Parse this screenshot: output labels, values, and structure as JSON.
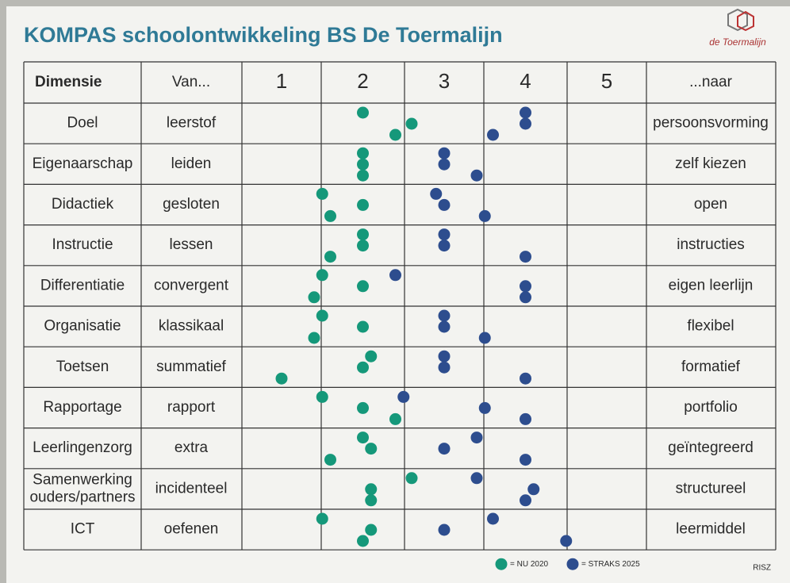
{
  "title": "KOMPAS schoolontwikkeling BS De Toermalijn",
  "logo": "de Toermalijn",
  "footer_mark": "RISZ",
  "header": {
    "dimension": "Dimensie",
    "from": "Van...",
    "to": "...naar"
  },
  "scale": [
    1,
    2,
    3,
    4,
    5
  ],
  "legend": [
    {
      "label": "= NU 2020",
      "color": "#15987a"
    },
    {
      "label": "= STRAKS 2025",
      "color": "#2d4d8e"
    }
  ],
  "rows": [
    {
      "dimension": [
        "Doel"
      ],
      "from": "leerstof",
      "to": "persoonsvorming",
      "now": [
        2.0,
        2.6,
        2.4
      ],
      "later": [
        4.0,
        4.0,
        3.6
      ]
    },
    {
      "dimension": [
        "Eigenaarschap"
      ],
      "from": "leiden",
      "to": "zelf kiezen",
      "now": [
        2.0,
        2.0,
        2.0
      ],
      "later": [
        3.0,
        3.0,
        3.4
      ]
    },
    {
      "dimension": [
        "Didactiek"
      ],
      "from": "gesloten",
      "to": "open",
      "now": [
        1.5,
        2.0,
        1.6
      ],
      "later": [
        2.9,
        3.0,
        3.5
      ]
    },
    {
      "dimension": [
        "Instructie"
      ],
      "from": "lessen",
      "to": "instructies",
      "now": [
        2.0,
        2.0,
        1.6
      ],
      "later": [
        3.0,
        3.0,
        4.0
      ]
    },
    {
      "dimension": [
        "Differentiatie"
      ],
      "from": "convergent",
      "to": "eigen leerlijn",
      "now": [
        1.5,
        2.0,
        1.4
      ],
      "later": [
        2.4,
        4.0,
        4.0
      ]
    },
    {
      "dimension": [
        "Organisatie"
      ],
      "from": "klassikaal",
      "to": "flexibel",
      "now": [
        1.5,
        2.0,
        1.4
      ],
      "later": [
        3.0,
        3.0,
        3.5
      ]
    },
    {
      "dimension": [
        "Toetsen"
      ],
      "from": "summatief",
      "to": "formatief",
      "now": [
        2.1,
        2.0,
        1.0
      ],
      "later": [
        3.0,
        3.0,
        4.0
      ]
    },
    {
      "dimension": [
        "Rapportage"
      ],
      "from": "rapport",
      "to": "portfolio",
      "now": [
        1.5,
        2.0,
        2.4
      ],
      "later": [
        2.5,
        3.5,
        4.0
      ]
    },
    {
      "dimension": [
        "Leerlingenzorg"
      ],
      "from": "extra",
      "to": "geïntegreerd",
      "now": [
        2.0,
        2.1,
        1.6
      ],
      "later": [
        3.4,
        3.0,
        4.0
      ]
    },
    {
      "dimension": [
        "Samenwerking",
        "ouders/partners"
      ],
      "from": "incidenteel",
      "to": "structureel",
      "now": [
        2.6,
        2.1,
        2.1
      ],
      "later": [
        3.4,
        4.1,
        4.0
      ]
    },
    {
      "dimension": [
        "ICT"
      ],
      "from": "oefenen",
      "to": "leermiddel",
      "now": [
        1.5,
        2.1,
        2.0
      ],
      "later": [
        3.6,
        3.0,
        4.5
      ]
    }
  ]
}
